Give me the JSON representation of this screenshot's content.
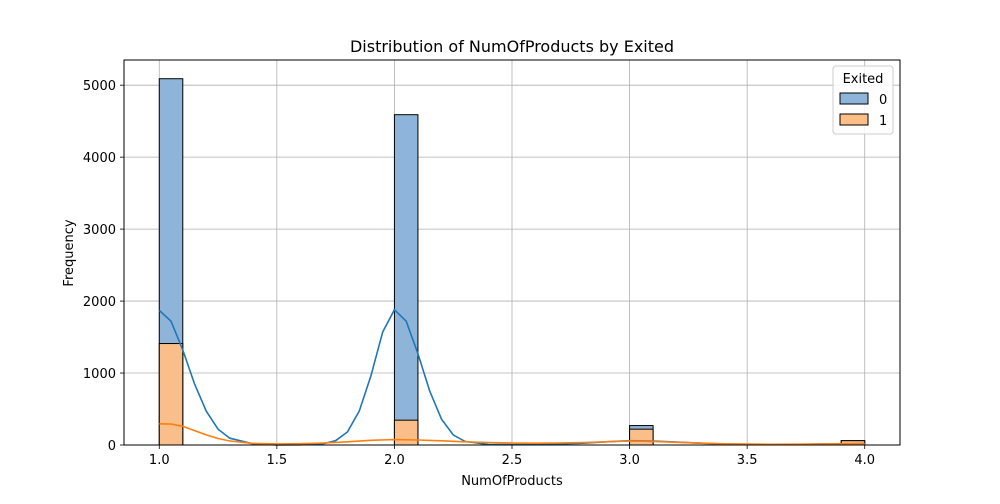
{
  "chart_data": {
    "type": "histogram",
    "title": "Distribution of NumOfProducts by Exited",
    "xlabel": "NumOfProducts",
    "ylabel": "Frequency",
    "xlim": [
      0.85,
      4.15
    ],
    "ylim": [
      0,
      5350
    ],
    "x_ticks": [
      {
        "value": 1.0,
        "label": "1.0"
      },
      {
        "value": 1.5,
        "label": "1.5"
      },
      {
        "value": 2.0,
        "label": "2.0"
      },
      {
        "value": 2.5,
        "label": "2.5"
      },
      {
        "value": 3.0,
        "label": "3.0"
      },
      {
        "value": 3.5,
        "label": "3.5"
      },
      {
        "value": 4.0,
        "label": "4.0"
      }
    ],
    "y_ticks": [
      {
        "value": 0,
        "label": "0"
      },
      {
        "value": 1000,
        "label": "1000"
      },
      {
        "value": 2000,
        "label": "2000"
      },
      {
        "value": 3000,
        "label": "3000"
      },
      {
        "value": 4000,
        "label": "4000"
      },
      {
        "value": 5000,
        "label": "5000"
      }
    ],
    "grid": true,
    "legend": {
      "title": "Exited",
      "placement": "top-right"
    },
    "bin_width": 0.1,
    "series": [
      {
        "name": "0",
        "color": "#1f77b4",
        "fill": "#8fb4d9",
        "bins": [
          {
            "x": 1.0,
            "y": 5090
          },
          {
            "x": 2.0,
            "y": 4590
          },
          {
            "x": 3.0,
            "y": 270
          },
          {
            "x": 3.9,
            "y": 60
          }
        ],
        "kde": [
          [
            1.0,
            1870
          ],
          [
            1.05,
            1720
          ],
          [
            1.1,
            1320
          ],
          [
            1.15,
            850
          ],
          [
            1.2,
            470
          ],
          [
            1.25,
            220
          ],
          [
            1.3,
            95
          ],
          [
            1.4,
            15
          ],
          [
            1.5,
            2
          ],
          [
            1.6,
            3
          ],
          [
            1.7,
            20
          ],
          [
            1.75,
            60
          ],
          [
            1.8,
            180
          ],
          [
            1.85,
            470
          ],
          [
            1.9,
            960
          ],
          [
            1.95,
            1570
          ],
          [
            2.0,
            1880
          ],
          [
            2.05,
            1720
          ],
          [
            2.1,
            1270
          ],
          [
            2.15,
            750
          ],
          [
            2.2,
            360
          ],
          [
            2.25,
            140
          ],
          [
            2.3,
            50
          ],
          [
            2.4,
            8
          ],
          [
            2.5,
            5
          ],
          [
            2.6,
            8
          ],
          [
            2.7,
            15
          ],
          [
            2.8,
            25
          ],
          [
            2.9,
            45
          ],
          [
            3.0,
            60
          ],
          [
            3.1,
            55
          ],
          [
            3.2,
            40
          ],
          [
            3.3,
            25
          ],
          [
            3.4,
            14
          ],
          [
            3.5,
            8
          ],
          [
            3.6,
            6
          ],
          [
            3.7,
            7
          ],
          [
            3.8,
            12
          ],
          [
            3.9,
            17
          ],
          [
            4.0,
            20
          ]
        ]
      },
      {
        "name": "1",
        "color": "#ff7f0e",
        "fill": "#ffbf86",
        "bins": [
          {
            "x": 1.0,
            "y": 1410
          },
          {
            "x": 2.0,
            "y": 345
          },
          {
            "x": 3.0,
            "y": 220
          },
          {
            "x": 3.9,
            "y": 60
          }
        ],
        "kde": [
          [
            1.0,
            295
          ],
          [
            1.05,
            290
          ],
          [
            1.1,
            260
          ],
          [
            1.15,
            200
          ],
          [
            1.2,
            140
          ],
          [
            1.25,
            90
          ],
          [
            1.3,
            55
          ],
          [
            1.4,
            22
          ],
          [
            1.5,
            15
          ],
          [
            1.6,
            18
          ],
          [
            1.7,
            28
          ],
          [
            1.8,
            45
          ],
          [
            1.9,
            65
          ],
          [
            2.0,
            75
          ],
          [
            2.1,
            70
          ],
          [
            2.2,
            58
          ],
          [
            2.3,
            45
          ],
          [
            2.4,
            35
          ],
          [
            2.5,
            28
          ],
          [
            2.6,
            25
          ],
          [
            2.7,
            28
          ],
          [
            2.8,
            35
          ],
          [
            2.9,
            45
          ],
          [
            3.0,
            55
          ],
          [
            3.1,
            50
          ],
          [
            3.2,
            38
          ],
          [
            3.3,
            26
          ],
          [
            3.4,
            17
          ],
          [
            3.5,
            12
          ],
          [
            3.6,
            10
          ],
          [
            3.7,
            11
          ],
          [
            3.8,
            14
          ],
          [
            3.9,
            16
          ],
          [
            4.0,
            17
          ]
        ]
      }
    ]
  }
}
